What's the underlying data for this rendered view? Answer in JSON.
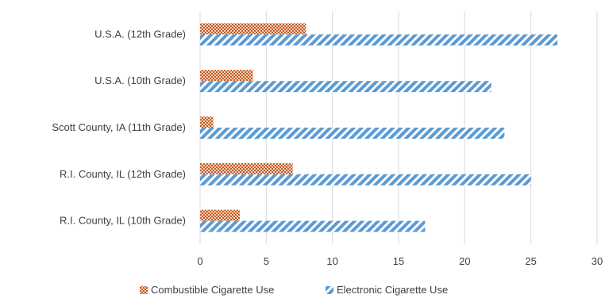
{
  "chart_data": {
    "type": "bar",
    "orientation": "horizontal",
    "categories": [
      "U.S.A. (12th Grade)",
      "U.S.A. (10th Grade)",
      "Scott County, IA (11th Grade)",
      "R.I. County, IL (12th Grade)",
      "R.I. County, IL (10th Grade)"
    ],
    "series": [
      {
        "name": "Combustible Cigarette Use",
        "values": [
          8,
          4,
          1,
          7,
          3
        ],
        "color": "#C55A22",
        "pattern": "crosshatch"
      },
      {
        "name": "Electronic Cigarette Use",
        "values": [
          27,
          22,
          23,
          25,
          17
        ],
        "color": "#5B9BD5",
        "pattern": "diagonal-stripes"
      }
    ],
    "xlim": [
      0,
      30
    ],
    "xticks": [
      0,
      5,
      10,
      15,
      20,
      25,
      30
    ],
    "grid": "vertical",
    "legend": "bottom-center",
    "title": "",
    "xlabel": "",
    "ylabel": ""
  }
}
